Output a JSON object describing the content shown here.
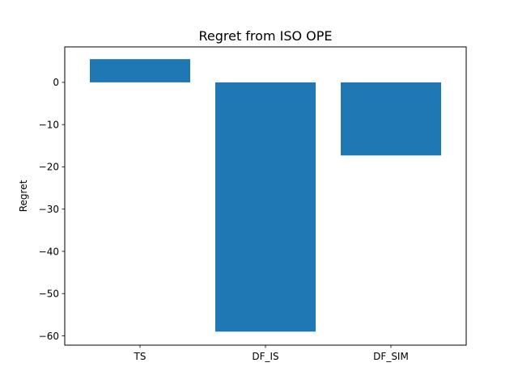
{
  "chart_data": {
    "type": "bar",
    "title": "Regret from ISO OPE",
    "xlabel": "",
    "ylabel": "Regret",
    "categories": [
      "TS",
      "DF_IS",
      "DF_SIM"
    ],
    "values": [
      5.5,
      -59.0,
      -17.3
    ],
    "ylim": [
      -62.2,
      8.4
    ],
    "yticks": [
      0,
      -10,
      -20,
      -30,
      -40,
      -50,
      -60
    ],
    "bar_color": "#1f77b4",
    "grid": false,
    "legend": "none"
  }
}
